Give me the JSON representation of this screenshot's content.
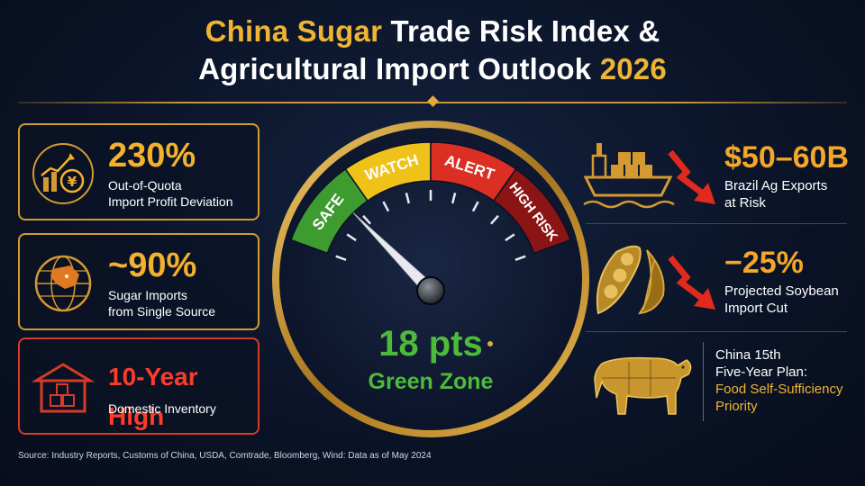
{
  "title": {
    "line1_gold": "China Sugar",
    "line1_white": "Trade Risk Index &",
    "line2_white": "Agricultural Import Outlook",
    "line2_gold": "2026"
  },
  "left_cards": [
    {
      "value": "230%",
      "label_line1": "Out-of-Quota",
      "label_line2": "Import Profit Deviation",
      "icon": "chart-yuan-icon",
      "accent": "#f4b22c"
    },
    {
      "value": "~90%",
      "label_line1": "Sugar Imports",
      "label_line2": "from Single Source",
      "icon": "globe-icon",
      "accent": "#f4b22c"
    },
    {
      "value": "10-Year High",
      "label_line1": "Domestic Inventory",
      "icon": "warehouse-icon",
      "accent": "#ff3b2a"
    }
  ],
  "gauge": {
    "zones": [
      {
        "label": "SAFE",
        "color": "#3e9b2f"
      },
      {
        "label": "WATCH",
        "color": "#efc21a"
      },
      {
        "label": "ALERT",
        "color": "#dc2f23"
      },
      {
        "label": "HIGH RISK",
        "color": "#8b1414"
      }
    ],
    "value": 18,
    "max": 100,
    "value_text": "18 pts",
    "zone_text": "Green Zone"
  },
  "right_items": [
    {
      "value": "$50–60B",
      "label_line1": "Brazil Ag Exports",
      "label_line2": "at Risk",
      "icon": "cargo-ship-icon"
    },
    {
      "value": "−25%",
      "label_line1": "Projected Soybean",
      "label_line2": "Import Cut",
      "icon": "soybean-pod-icon"
    }
  ],
  "plan": {
    "line1": "China 15th",
    "line2": "Five-Year Plan:",
    "line3": "Food Self-Sufficiency",
    "line4": "Priority",
    "icon": "cattle-icon"
  },
  "source": "Source: Industry Reports, Customs of China, USDA, Comtrade, Bloomberg, Wind:  Data as of May 2024",
  "colors": {
    "gold": "#f0b433",
    "orange": "#f4a728",
    "red": "#ff3b2a",
    "green": "#4dbb3a",
    "background": "#0b1428"
  }
}
